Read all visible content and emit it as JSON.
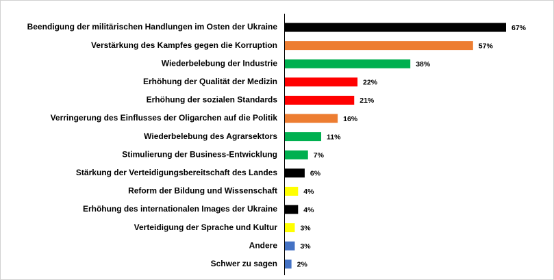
{
  "chart_data": {
    "type": "bar",
    "orientation": "horizontal",
    "categories": [
      "Beendigung der militärischen Handlungen im Osten der Ukraine",
      "Verstärkung des Kampfes gegen die Korruption",
      "Wiederbelebung der Industrie",
      "Erhöhung der Qualität der Medizin",
      "Erhöhung der sozialen Standards",
      "Verringerung des Einflusses der Oligarchen auf die Politik",
      "Wiederbelebung des Agrarsektors",
      "Stimulierung der Business-Entwicklung",
      "Stärkung der Verteidigungsbereitschaft des Landes",
      "Reform der Bildung und Wissenschaft",
      "Erhöhung des internationalen Images der Ukraine",
      "Verteidigung der Sprache und Kultur",
      "Andere",
      "Schwer zu sagen"
    ],
    "values": [
      67,
      57,
      38,
      22,
      21,
      16,
      11,
      7,
      6,
      4,
      4,
      3,
      3,
      2
    ],
    "value_labels": [
      "67%",
      "57%",
      "38%",
      "22%",
      "21%",
      "16%",
      "11%",
      "7%",
      "6%",
      "4%",
      "4%",
      "3%",
      "3%",
      "2%"
    ],
    "colors": [
      "#000000",
      "#ed7d31",
      "#00b050",
      "#ff0000",
      "#ff0000",
      "#ed7d31",
      "#00b050",
      "#00b050",
      "#000000",
      "#ffff00",
      "#000000",
      "#ffff00",
      "#4472c4",
      "#4472c4"
    ]
  }
}
